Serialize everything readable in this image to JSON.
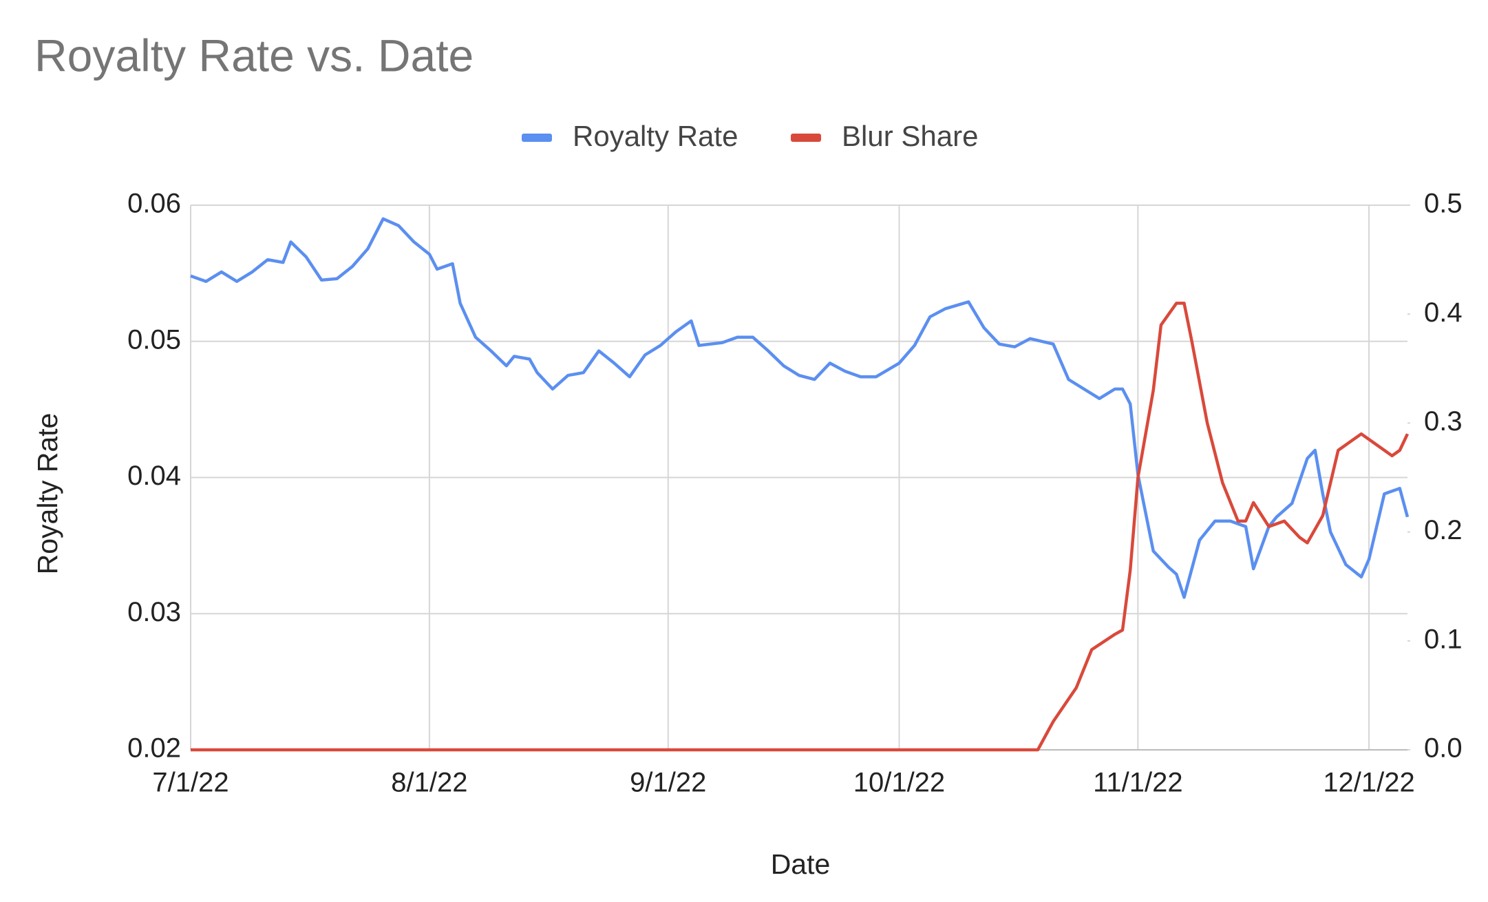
{
  "chart_data": {
    "type": "line",
    "title": "Royalty Rate vs. Date",
    "x_label": "Date",
    "y_label": "Royalty Rate",
    "xlim": [
      "7/1/22",
      "12/6/22"
    ],
    "xticks": [
      "7/1/22",
      "8/1/22",
      "9/1/22",
      "10/1/22",
      "11/1/22",
      "12/1/22"
    ],
    "ylim": [
      0.02,
      0.06
    ],
    "yticks": [
      0.02,
      0.03,
      0.04,
      0.05,
      0.06
    ],
    "y2lim": [
      0,
      0.5
    ],
    "y2ticks": [
      {
        "value": 0,
        "label": "0.0"
      },
      0.1,
      0.2,
      0.3,
      0.4,
      0.5
    ],
    "grid": true,
    "legend": "top",
    "series": [
      {
        "name": "Royalty Rate",
        "color": "#5b8ff0",
        "x": [
          "7/1/22",
          "7/3/22",
          "7/5/22",
          "7/7/22",
          "7/9/22",
          "7/11/22",
          "7/13/22",
          "7/14/22",
          "7/16/22",
          "7/18/22",
          "7/20/22",
          "7/22/22",
          "7/24/22",
          "7/26/22",
          "7/28/22",
          "7/30/22",
          "8/1/22",
          "8/2/22",
          "8/4/22",
          "8/5/22",
          "8/7/22",
          "8/9/22",
          "8/11/22",
          "8/12/22",
          "8/14/22",
          "8/15/22",
          "8/17/22",
          "8/19/22",
          "8/21/22",
          "8/23/22",
          "8/25/22",
          "8/27/22",
          "8/29/22",
          "8/31/22",
          "9/2/22",
          "9/4/22",
          "9/5/22",
          "9/8/22",
          "9/10/22",
          "9/12/22",
          "9/14/22",
          "9/16/22",
          "9/18/22",
          "9/20/22",
          "9/22/22",
          "9/24/22",
          "9/26/22",
          "9/28/22",
          "10/1/22",
          "10/3/22",
          "10/5/22",
          "10/7/22",
          "10/10/22",
          "10/12/22",
          "10/14/22",
          "10/16/22",
          "10/18/22",
          "10/21/22",
          "10/23/22",
          "10/25/22",
          "10/27/22",
          "10/29/22",
          "10/30/22",
          "10/31/22",
          "11/1/22",
          "11/3/22",
          "11/5/22",
          "11/6/22",
          "11/7/22",
          "11/9/22",
          "11/11/22",
          "11/13/22",
          "11/15/22",
          "11/16/22",
          "11/18/22",
          "11/19/22",
          "11/21/22",
          "11/23/22",
          "11/24/22",
          "11/25/22",
          "11/26/22",
          "11/28/22",
          "11/30/22",
          "12/1/22",
          "12/3/22",
          "12/4/22",
          "12/5/22",
          "12/6/22"
        ],
        "values": [
          0.0548,
          0.0544,
          0.0551,
          0.0544,
          0.0551,
          0.056,
          0.0558,
          0.0573,
          0.0562,
          0.0545,
          0.0546,
          0.0555,
          0.0568,
          0.059,
          0.0585,
          0.0573,
          0.0564,
          0.0553,
          0.0557,
          0.0528,
          0.0503,
          0.0493,
          0.0482,
          0.0489,
          0.0487,
          0.0477,
          0.0465,
          0.0475,
          0.0477,
          0.0493,
          0.0484,
          0.0474,
          0.049,
          0.0497,
          0.0507,
          0.0515,
          0.0497,
          0.0499,
          0.0503,
          0.0503,
          0.0493,
          0.0482,
          0.0475,
          0.0472,
          0.0484,
          0.0478,
          0.0474,
          0.0474,
          0.0484,
          0.0497,
          0.0518,
          0.0524,
          0.0529,
          0.051,
          0.0498,
          0.0496,
          0.0502,
          0.0498,
          0.0472,
          0.0465,
          0.0458,
          0.0465,
          0.0465,
          0.0454,
          0.0402,
          0.0346,
          0.0334,
          0.0329,
          0.0312,
          0.0354,
          0.0368,
          0.0368,
          0.0364,
          0.0333,
          0.0364,
          0.0371,
          0.0381,
          0.0414,
          0.042,
          0.0388,
          0.036,
          0.0336,
          0.0327,
          0.034,
          0.0388,
          0.039,
          0.0392,
          0.0371
        ]
      },
      {
        "name": "Blur Share",
        "color": "#d9493b",
        "axis": "y2",
        "x": [
          "7/1/22",
          "10/19/22",
          "10/21/22",
          "10/24/22",
          "10/26/22",
          "10/29/22",
          "10/30/22",
          "10/31/22",
          "11/1/22",
          "11/3/22",
          "11/4/22",
          "11/6/22",
          "11/7/22",
          "11/8/22",
          "11/10/22",
          "11/12/22",
          "11/14/22",
          "11/15/22",
          "11/16/22",
          "11/18/22",
          "11/20/22",
          "11/22/22",
          "11/23/22",
          "11/25/22",
          "11/27/22",
          "11/29/22",
          "11/30/22",
          "12/2/22",
          "12/4/22",
          "12/5/22",
          "12/6/22"
        ],
        "values": [
          0,
          0,
          0.026,
          0.057,
          0.092,
          0.106,
          0.11,
          0.165,
          0.25,
          0.33,
          0.39,
          0.41,
          0.41,
          0.375,
          0.3,
          0.245,
          0.21,
          0.21,
          0.227,
          0.205,
          0.21,
          0.195,
          0.19,
          0.215,
          0.275,
          0.285,
          0.29,
          0.28,
          0.27,
          0.275,
          0.29
        ]
      }
    ]
  }
}
